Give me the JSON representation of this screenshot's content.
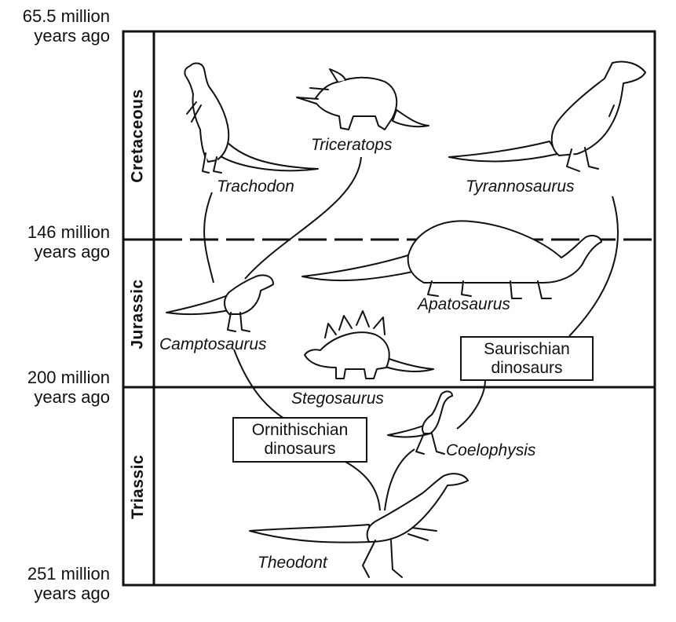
{
  "timeline": {
    "ages": [
      {
        "line1": "65.5 million",
        "line2": "years ago"
      },
      {
        "line1": "146 million",
        "line2": "years ago"
      },
      {
        "line1": "200 million",
        "line2": "years ago"
      },
      {
        "line1": "251 million",
        "line2": "years ago"
      }
    ],
    "periods": [
      "Cretaceous",
      "Jurassic",
      "Triassic"
    ]
  },
  "dinosaurs": {
    "trachodon": "Trachodon",
    "triceratops": "Triceratops",
    "tyrannosaurus": "Tyrannosaurus",
    "camptosaurus": "Camptosaurus",
    "apatosaurus": "Apatosaurus",
    "stegosaurus": "Stegosaurus",
    "coelophysis": "Coelophysis",
    "theodont": "Theodont"
  },
  "groups": {
    "ornithischian": {
      "line1": "Ornithischian",
      "line2": "dinosaurs"
    },
    "saurischian": {
      "line1": "Saurischian",
      "line2": "dinosaurs"
    }
  }
}
